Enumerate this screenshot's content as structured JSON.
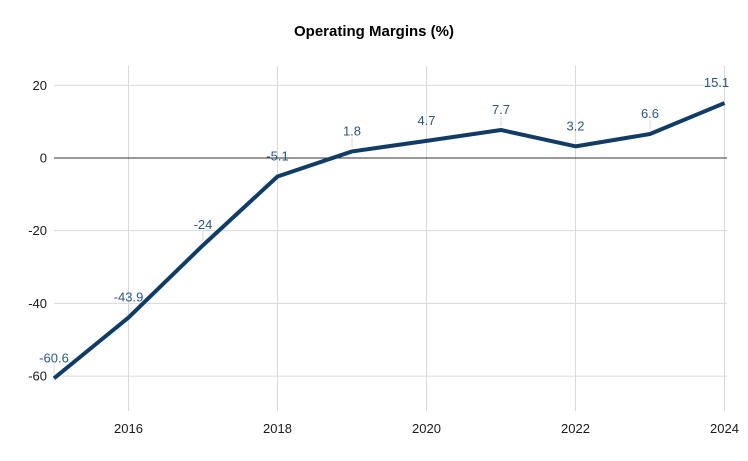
{
  "title": "Operating Margins (%)",
  "chart_data": {
    "type": "line",
    "title": "Operating Margins (%)",
    "x": [
      2015,
      2016,
      2017,
      2018,
      2019,
      2020,
      2021,
      2022,
      2023,
      2024
    ],
    "values": [
      -60.6,
      -43.9,
      -24,
      -5.1,
      1.8,
      4.7,
      7.7,
      3.2,
      6.6,
      15.1
    ],
    "point_labels": [
      "-60.6",
      "-43.9",
      "-24",
      "-5.1",
      "1.8",
      "4.7",
      "7.7",
      "3.2",
      "6.6",
      "15.1"
    ],
    "x_tick_values": [
      2016,
      2018,
      2020,
      2022,
      2024
    ],
    "x_tick_labels": [
      "2016",
      "2018",
      "2020",
      "2022",
      "2024"
    ],
    "y_tick_values": [
      20,
      0,
      -20,
      -40,
      -60
    ],
    "y_tick_labels": [
      "20",
      "0",
      "-20",
      "-40",
      "-60"
    ],
    "xlim": [
      2015,
      2024
    ],
    "ylim": [
      -69.6,
      25.3
    ],
    "grid": true,
    "legend": "none",
    "zero_line": true,
    "colors": {
      "line": "#113c66",
      "point_label": "#2a5783",
      "gridline": "#d9d9d9",
      "leader_line": "#d9d9d9",
      "zero_line": "#333333",
      "axis_text": "#1a1a1a",
      "title_text": "#000000",
      "background": "#ffffff"
    }
  }
}
